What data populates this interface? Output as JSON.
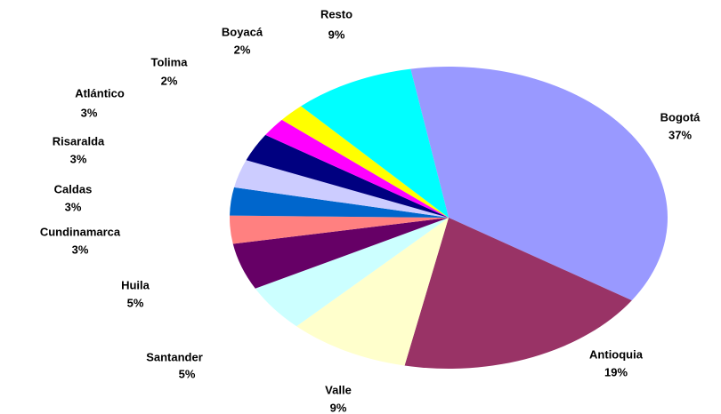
{
  "chart_data": {
    "type": "pie",
    "categories": [
      "Bogotá",
      "Antioquia",
      "Valle",
      "Santander",
      "Huila",
      "Cundinamarca",
      "Caldas",
      "Risaralda",
      "Atlántico",
      "Tolima",
      "Boyacá",
      "Resto"
    ],
    "values": [
      37,
      19,
      9,
      5,
      5,
      3,
      3,
      3,
      3,
      2,
      2,
      9
    ],
    "value_labels": [
      "37%",
      "19%",
      "9%",
      "5%",
      "5%",
      "3%",
      "3%",
      "3%",
      "3%",
      "2%",
      "2%",
      "9%"
    ],
    "colors": [
      "#9999ff",
      "#993366",
      "#ffffcc",
      "#ccffff",
      "#660066",
      "#ff8080",
      "#0066cc",
      "#ccccff",
      "#000080",
      "#ff00ff",
      "#ffff00",
      "#00ffff"
    ]
  }
}
